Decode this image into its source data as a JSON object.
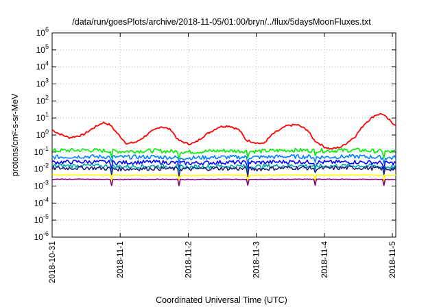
{
  "chart_data": {
    "type": "line",
    "title": "/data/run/goesPlots/archive/2018-11-05/01:00/bryn/../flux/5daysMoonFluxes.txt",
    "xlabel": "Coordinated Universal Time (UTC)",
    "ylabel": "protons/cm²-s-sr-MeV",
    "ylim": [
      1e-06,
      1000000.0
    ],
    "yscale": "log",
    "grid": true,
    "x_ticks": [
      "2018-10-31",
      "2018-11-1",
      "2018-11-2",
      "2018-11-3",
      "2018-11-4",
      "2018-11-5"
    ],
    "y_ticks": [
      {
        "base": "10",
        "exp": "-6"
      },
      {
        "base": "10",
        "exp": "-5"
      },
      {
        "base": "10",
        "exp": "-4"
      },
      {
        "base": "10",
        "exp": "-3"
      },
      {
        "base": "10",
        "exp": "-2"
      },
      {
        "base": "10",
        "exp": "-1"
      },
      {
        "base": "10",
        "exp": "0"
      },
      {
        "base": "10",
        "exp": "1"
      },
      {
        "base": "10",
        "exp": "2"
      },
      {
        "base": "10",
        "exp": "3"
      },
      {
        "base": "10",
        "exp": "4"
      },
      {
        "base": "10",
        "exp": "5"
      },
      {
        "base": "10",
        "exp": "6"
      }
    ],
    "x_range_days": [
      0,
      5.05
    ],
    "series": [
      {
        "color": "#ff0000",
        "x": [
          0,
          0.1,
          0.25,
          0.45,
          0.6,
          0.75,
          0.85,
          1.0,
          1.1,
          1.25,
          1.45,
          1.6,
          1.75,
          1.85,
          2.0,
          2.1,
          2.25,
          2.45,
          2.6,
          2.75,
          2.85,
          3.0,
          3.1,
          3.25,
          3.45,
          3.6,
          3.75,
          3.85,
          4.0,
          4.1,
          4.25,
          4.45,
          4.6,
          4.75,
          4.85,
          5.0,
          5.05
        ],
        "values": [
          2,
          1.2,
          0.7,
          1.0,
          2.5,
          5.5,
          4.0,
          0.8,
          0.3,
          0.4,
          1.5,
          3.2,
          2.0,
          0.5,
          0.3,
          0.35,
          1.0,
          3.0,
          3.5,
          2.0,
          0.5,
          0.35,
          0.3,
          1.2,
          3.5,
          4.0,
          2.0,
          0.5,
          0.2,
          0.15,
          0.2,
          0.8,
          5.0,
          15,
          18,
          5,
          4
        ]
      },
      {
        "color": "#00ee00",
        "x": [
          0,
          0.5,
          1.0,
          1.5,
          2.0,
          2.5,
          3.0,
          3.5,
          4.0,
          4.5,
          5.0,
          5.05
        ],
        "values": [
          0.12,
          0.13,
          0.11,
          0.12,
          0.1,
          0.12,
          0.11,
          0.13,
          0.12,
          0.13,
          0.1,
          0.11
        ]
      },
      {
        "color": "#0080ff",
        "x": [
          0,
          0.5,
          1.0,
          1.5,
          2.0,
          2.5,
          3.0,
          3.5,
          4.0,
          4.5,
          5.0,
          5.05
        ],
        "values": [
          0.05,
          0.055,
          0.05,
          0.052,
          0.045,
          0.05,
          0.05,
          0.055,
          0.05,
          0.055,
          0.045,
          0.05
        ]
      },
      {
        "color": "#0000ff",
        "x": [
          0,
          0.5,
          1.0,
          1.5,
          2.0,
          2.5,
          3.0,
          3.5,
          4.0,
          4.5,
          5.0,
          5.05
        ],
        "values": [
          0.025,
          0.027,
          0.024,
          0.026,
          0.022,
          0.025,
          0.024,
          0.027,
          0.025,
          0.026,
          0.022,
          0.024
        ]
      },
      {
        "color": "#00aaaa",
        "x": [
          0,
          0.5,
          1.0,
          1.5,
          2.0,
          2.5,
          3.0,
          3.5,
          4.0,
          4.5,
          5.0,
          5.05
        ],
        "values": [
          0.015,
          0.016,
          0.014,
          0.015,
          0.013,
          0.015,
          0.014,
          0.016,
          0.015,
          0.016,
          0.013,
          0.014
        ]
      },
      {
        "color": "#202080",
        "x": [
          0,
          0.5,
          1.0,
          1.5,
          2.0,
          2.5,
          3.0,
          3.5,
          4.0,
          4.5,
          5.0,
          5.05
        ],
        "values": [
          0.011,
          0.012,
          0.01,
          0.011,
          0.01,
          0.011,
          0.01,
          0.012,
          0.011,
          0.012,
          0.01,
          0.011
        ]
      },
      {
        "color": "#ffff00",
        "x": [
          0,
          0.5,
          1.0,
          1.5,
          2.0,
          2.5,
          3.0,
          3.5,
          4.0,
          4.5,
          5.0,
          5.05
        ],
        "values": [
          0.0045,
          0.0045,
          0.0043,
          0.0044,
          0.0042,
          0.0044,
          0.0043,
          0.0045,
          0.0044,
          0.0045,
          0.0042,
          0.0044
        ]
      },
      {
        "color": "#800080",
        "x": [
          0,
          0.5,
          1.0,
          1.5,
          2.0,
          2.5,
          3.0,
          3.5,
          4.0,
          4.5,
          5.0,
          5.05
        ],
        "values": [
          0.0025,
          0.0025,
          0.0024,
          0.0025,
          0.0024,
          0.0025,
          0.0024,
          0.0025,
          0.0025,
          0.0025,
          0.0024,
          0.0024
        ]
      }
    ]
  }
}
